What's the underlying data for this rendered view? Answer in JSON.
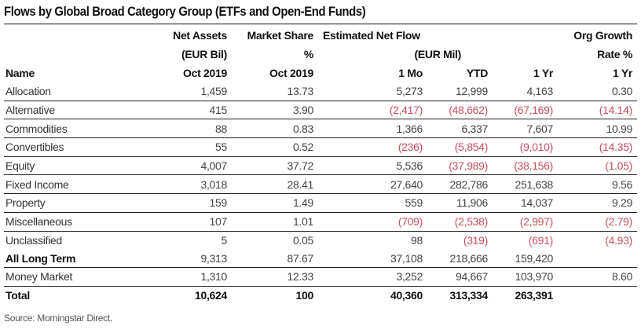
{
  "title": "Flows by Global Broad Category Group (ETFs and Open-End Funds)",
  "header": {
    "row1": [
      "",
      "Net Assets",
      "Market Share",
      "Estimated Net Flow",
      "",
      "",
      "Org Growth"
    ],
    "row2": [
      "",
      "(EUR Bil)",
      "%",
      "(EUR Mil)",
      "",
      "",
      "Rate %"
    ],
    "row3": [
      "Name",
      "Oct 2019",
      "Oct 2019",
      "1 Mo",
      "YTD",
      "1 Yr",
      "1 Yr"
    ]
  },
  "rows": [
    {
      "name": "Allocation",
      "net_assets": "1,459",
      "market_share": "13.73",
      "flow_1mo": "5,273",
      "flow_ytd": "12,999",
      "flow_1yr": "4,163",
      "org_growth": "0.30"
    },
    {
      "name": "Alternative",
      "net_assets": "415",
      "market_share": "3.90",
      "flow_1mo": "(2,417)",
      "flow_ytd": "(48,662)",
      "flow_1yr": "(67,169)",
      "org_growth": "(14.14)"
    },
    {
      "name": "Commodities",
      "net_assets": "88",
      "market_share": "0.83",
      "flow_1mo": "1,366",
      "flow_ytd": "6,337",
      "flow_1yr": "7,607",
      "org_growth": "10.99"
    },
    {
      "name": "Convertibles",
      "net_assets": "55",
      "market_share": "0.52",
      "flow_1mo": "(236)",
      "flow_ytd": "(5,854)",
      "flow_1yr": "(9,010)",
      "org_growth": "(14.35)"
    },
    {
      "name": "Equity",
      "net_assets": "4,007",
      "market_share": "37.72",
      "flow_1mo": "5,536",
      "flow_ytd": "(37,989)",
      "flow_1yr": "(38,156)",
      "org_growth": "(1.05)"
    },
    {
      "name": "Fixed Income",
      "net_assets": "3,018",
      "market_share": "28.41",
      "flow_1mo": "27,640",
      "flow_ytd": "282,786",
      "flow_1yr": "251,638",
      "org_growth": "9.56"
    },
    {
      "name": "Property",
      "net_assets": "159",
      "market_share": "1.49",
      "flow_1mo": "559",
      "flow_ytd": "11,906",
      "flow_1yr": "14,037",
      "org_growth": "9.29"
    },
    {
      "name": "Miscellaneous",
      "net_assets": "107",
      "market_share": "1.01",
      "flow_1mo": "(709)",
      "flow_ytd": "(2,538)",
      "flow_1yr": "(2,997)",
      "org_growth": "(2.79)"
    },
    {
      "name": "Unclassified",
      "net_assets": "5",
      "market_share": "0.05",
      "flow_1mo": "98",
      "flow_ytd": "(319)",
      "flow_1yr": "(691)",
      "org_growth": "(4.93)"
    },
    {
      "name": "All Long Term",
      "net_assets": "9,313",
      "market_share": "87.67",
      "flow_1mo": "37,108",
      "flow_ytd": "218,666",
      "flow_1yr": "159,420",
      "org_growth": ""
    },
    {
      "name": "Money Market",
      "net_assets": "1,310",
      "market_share": "12.33",
      "flow_1mo": "3,252",
      "flow_ytd": "94,667",
      "flow_1yr": "103,970",
      "org_growth": "8.60"
    },
    {
      "name": "Total",
      "net_assets": "10,624",
      "market_share": "100",
      "flow_1mo": "40,360",
      "flow_ytd": "313,334",
      "flow_1yr": "263,391",
      "org_growth": ""
    }
  ],
  "source": "Source: Morningstar Direct.",
  "colors": {
    "negative": "#c8505e",
    "text": "#444444",
    "rule": "#222222"
  }
}
